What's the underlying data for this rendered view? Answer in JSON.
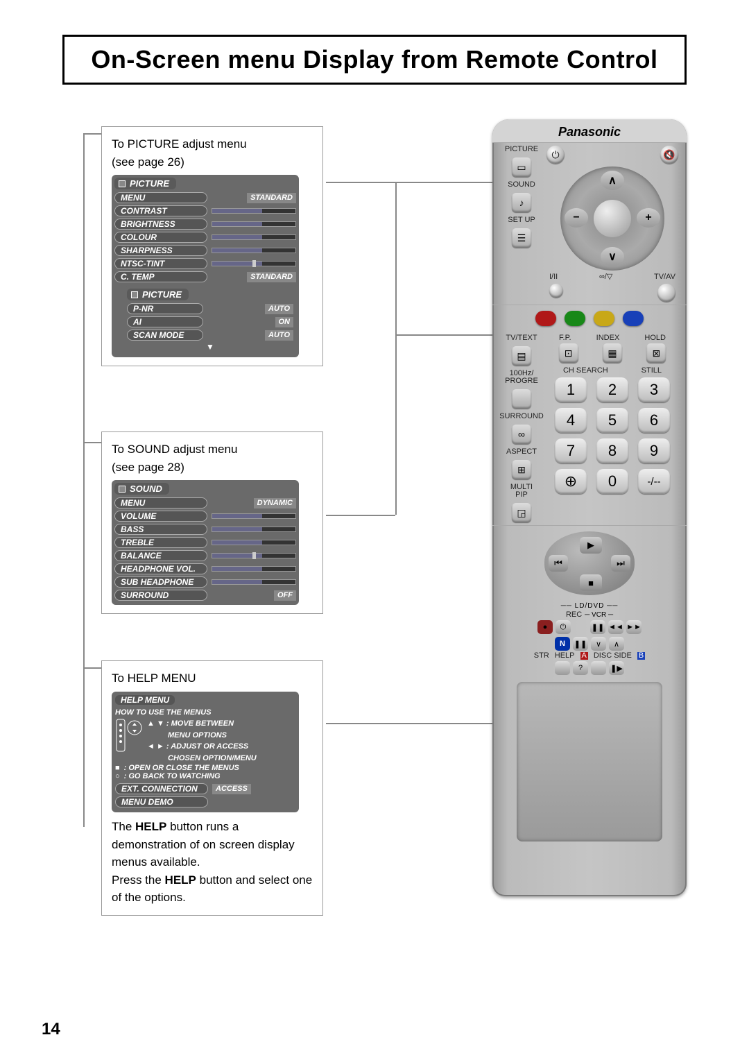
{
  "page_number": "14",
  "title": "On-Screen menu Display from Remote Control",
  "picture_block": {
    "caption1": "To PICTURE adjust menu",
    "caption2": "(see page 26)",
    "header": "PICTURE",
    "rows": [
      {
        "label": "MENU",
        "value": "STANDARD"
      },
      {
        "label": "CONTRAST",
        "slider": true
      },
      {
        "label": "BRIGHTNESS",
        "slider": true
      },
      {
        "label": "COLOUR",
        "slider": true
      },
      {
        "label": "SHARPNESS",
        "slider": true
      },
      {
        "label": "NTSC-TINT",
        "slider": "mid"
      },
      {
        "label": "C. TEMP",
        "value": "STANDARD"
      }
    ],
    "sub_header": "PICTURE",
    "sub_rows": [
      {
        "label": "P-NR",
        "value": "AUTO"
      },
      {
        "label": "AI",
        "value": "ON"
      },
      {
        "label": "SCAN MODE",
        "value": "AUTO"
      }
    ]
  },
  "sound_block": {
    "caption1": "To SOUND adjust menu",
    "caption2": "(see page 28)",
    "header": "SOUND",
    "rows": [
      {
        "label": "MENU",
        "value": "DYNAMIC"
      },
      {
        "label": "VOLUME",
        "slider": true
      },
      {
        "label": "BASS",
        "slider": true
      },
      {
        "label": "TREBLE",
        "slider": true
      },
      {
        "label": "BALANCE",
        "slider": "mid"
      },
      {
        "label": "HEADPHONE VOL.",
        "slider": true
      },
      {
        "label": "SUB HEADPHONE",
        "slider": true
      },
      {
        "label": "SURROUND",
        "value": "OFF"
      }
    ]
  },
  "help_block": {
    "caption": "To HELP MENU",
    "header": "HELP MENU",
    "line1": "HOW TO USE THE MENUS",
    "move1": ": MOVE BETWEEN",
    "move2": "MENU OPTIONS",
    "adj1": ": ADJUST OR ACCESS",
    "adj2": "CHOSEN OPTION/MENU",
    "open": ": OPEN OR CLOSE THE MENUS",
    "goback": ": GO BACK TO WATCHING",
    "ext_label": "EXT. CONNECTION",
    "ext_val": "ACCESS",
    "demo": "MENU DEMO",
    "desc1": "The ",
    "desc_help": "HELP",
    "desc2": " button runs a demonstration of on screen display menus available.",
    "desc3": "Press the ",
    "desc4": " button and select one of the options."
  },
  "remote": {
    "brand": "Panasonic",
    "labels": {
      "picture": "PICTURE",
      "sound": "SOUND",
      "setup": "SET UP",
      "iii": "I/II",
      "tvav": "TV/AV",
      "stereo": "∞/▽",
      "tvtext": "TV/TEXT",
      "fp": "F.P.",
      "index": "INDEX",
      "hold": "HOLD",
      "progre": "100Hz/\nPROGRE",
      "chsearch": "CH SEARCH",
      "still": "STILL",
      "surround": "SURROUND",
      "aspect": "ASPECT",
      "multipip": "MULTI\nPIP",
      "lddvd": "LD/DVD",
      "rec": "REC",
      "vcr": "VCR",
      "str": "STR",
      "help": "HELP",
      "adisc": "A",
      "disc": "DISC SIDE",
      "bdisc": "B"
    },
    "numbers": [
      "1",
      "2",
      "3",
      "4",
      "5",
      "6",
      "7",
      "8",
      "9",
      "0"
    ],
    "dash": "-/--",
    "colors": [
      "#b01818",
      "#188818",
      "#c8a818",
      "#1840b8"
    ]
  },
  "osd_colors": {
    "panel_bg": "#6a6a6a",
    "pill_bg": "#555555",
    "slider_fill": "#6677aa"
  }
}
